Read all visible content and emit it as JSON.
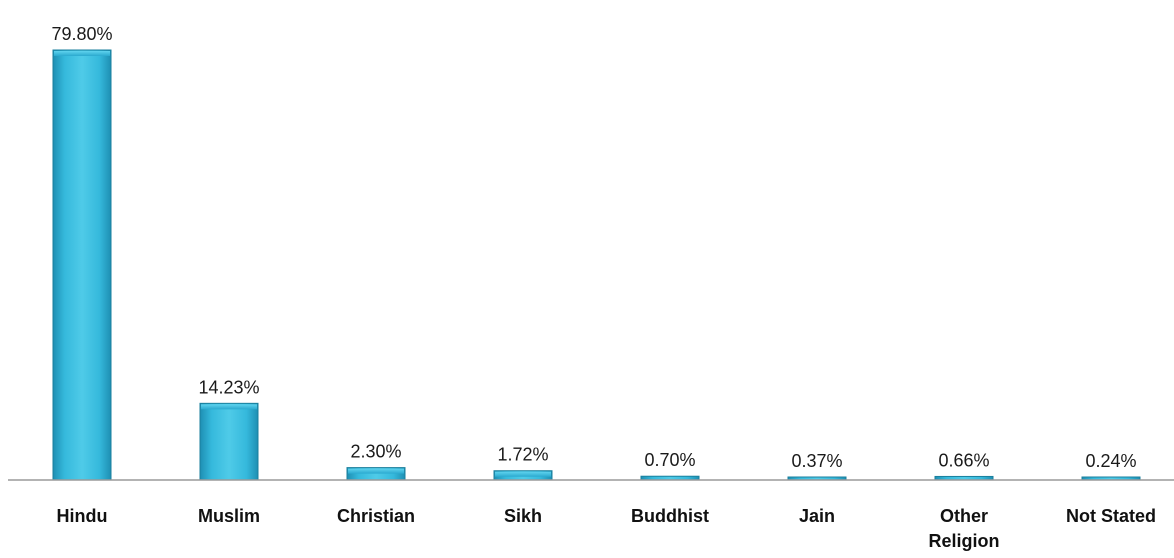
{
  "chart_data": {
    "type": "bar",
    "title": "",
    "xlabel": "",
    "ylabel": "",
    "categories": [
      "Hindu",
      "Muslim",
      "Christian",
      "Sikh",
      "Buddhist",
      "Jain",
      "Other Religion",
      "Not Stated"
    ],
    "category_lines": [
      [
        "Hindu"
      ],
      [
        "Muslim"
      ],
      [
        "Christian"
      ],
      [
        "Sikh"
      ],
      [
        "Buddhist"
      ],
      [
        "Jain"
      ],
      [
        "Other",
        "Religion"
      ],
      [
        "Not Stated"
      ]
    ],
    "values": [
      79.8,
      14.23,
      2.3,
      1.72,
      0.7,
      0.37,
      0.66,
      0.24
    ],
    "value_labels": [
      "79.80%",
      "14.23%",
      "2.30%",
      "1.72%",
      "0.70%",
      "0.37%",
      "0.66%",
      "0.24%"
    ],
    "ylim": [
      0,
      79.8
    ],
    "grid": false,
    "legend": "none",
    "bar_color": "#2aa9cf",
    "bar_highlight_color": "#4fcbe8",
    "bar_edge_color": "#1a7f9c",
    "axis_color": "#9a9a9a"
  }
}
